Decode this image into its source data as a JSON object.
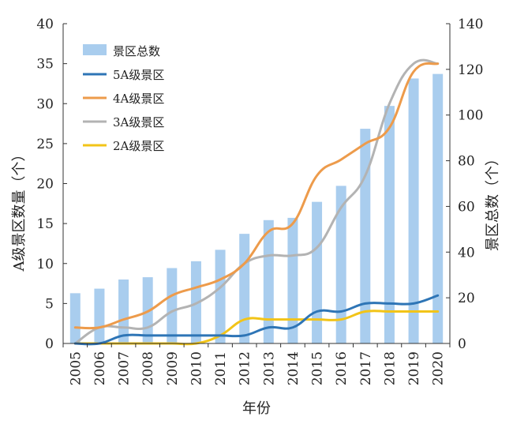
{
  "chart_data": {
    "type": "bar",
    "xlabel": "年份",
    "ylabel_left": "A级景区数量（个）",
    "ylabel_right": "景区总数（个）",
    "categories": [
      "2005",
      "2006",
      "2007",
      "2008",
      "2009",
      "2010",
      "2011",
      "2012",
      "2013",
      "2014",
      "2015",
      "2016",
      "2017",
      "2018",
      "2019",
      "2020"
    ],
    "ylim_left": [
      0,
      40
    ],
    "yticks_left": [
      0,
      5,
      10,
      15,
      20,
      25,
      30,
      35,
      40
    ],
    "ylim_right": [
      0,
      140
    ],
    "yticks_right": [
      0,
      20,
      40,
      60,
      80,
      100,
      120,
      140
    ],
    "grid": false,
    "legend_position": "top-left",
    "series": [
      {
        "name": "景区总数",
        "kind": "bar",
        "axis": "right",
        "color": "#a9cdee",
        "values": [
          22,
          24,
          28,
          29,
          33,
          36,
          41,
          48,
          54,
          55,
          62,
          69,
          94,
          104,
          116,
          118
        ]
      },
      {
        "name": "5A级景区",
        "kind": "line",
        "axis": "left",
        "color": "#2e75b6",
        "values": [
          0,
          0,
          1,
          1,
          1,
          1,
          1,
          1,
          2,
          2,
          4,
          4,
          5,
          5,
          5,
          6
        ]
      },
      {
        "name": "4A级景区",
        "kind": "line",
        "axis": "left",
        "color": "#ed9b4b",
        "values": [
          2,
          2,
          3,
          4,
          6,
          7,
          8,
          10,
          14,
          15,
          21,
          23,
          25,
          27,
          34,
          35
        ]
      },
      {
        "name": "3A级景区",
        "kind": "line",
        "axis": "left",
        "color": "#b3b3b3",
        "values": [
          0,
          2,
          2,
          2,
          4,
          5,
          7,
          10,
          11,
          11,
          12,
          17,
          21,
          30,
          35,
          35
        ]
      },
      {
        "name": "2A级景区",
        "kind": "line",
        "axis": "left",
        "color": "#f2c418",
        "values": [
          0,
          0,
          0,
          0,
          0,
          0,
          1,
          3,
          3,
          3,
          3,
          3,
          4,
          4,
          4,
          4
        ]
      }
    ]
  }
}
